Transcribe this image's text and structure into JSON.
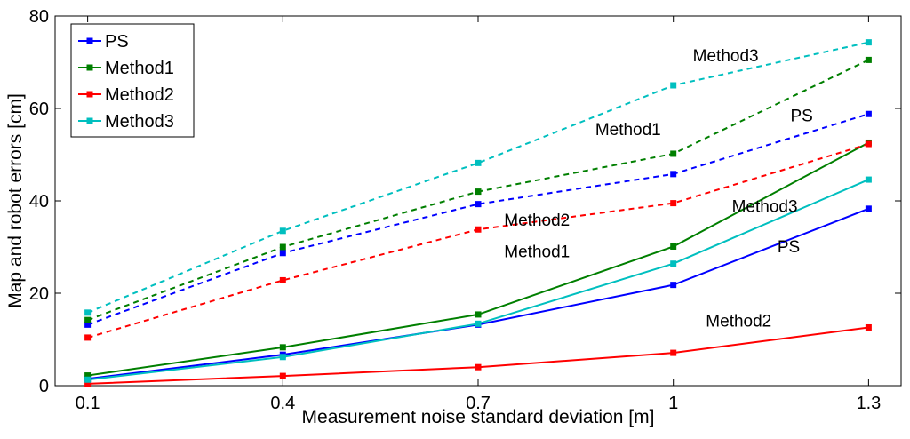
{
  "chart_data": {
    "type": "line",
    "xlabel": "Measurement noise standard deviation [m]",
    "ylabel": "Map and robot errors [cm]",
    "x": [
      0.1,
      0.4,
      0.7,
      1,
      1.3
    ],
    "x_tick_labels": [
      "0.1",
      "0.4",
      "0.7",
      "1",
      "1.3"
    ],
    "xlim": [
      0.05,
      1.35
    ],
    "ylim": [
      0,
      80
    ],
    "y_ticks": [
      0,
      20,
      40,
      60,
      80
    ],
    "y_tick_labels": [
      "0",
      "20",
      "40",
      "60",
      "80"
    ],
    "grid": false,
    "legend_position": "top-left",
    "legend": [
      {
        "name": "PS",
        "color": "#0000ff"
      },
      {
        "name": "Method1",
        "color": "#007f00"
      },
      {
        "name": "Method2",
        "color": "#ff0000"
      },
      {
        "name": "Method3",
        "color": "#00bfbf"
      }
    ],
    "series": [
      {
        "name": "PS",
        "style": "solid",
        "color": "#0000ff",
        "values": [
          1.5,
          6.7,
          13.2,
          21.8,
          38.3
        ]
      },
      {
        "name": "Method1",
        "style": "solid",
        "color": "#007f00",
        "values": [
          2.2,
          8.3,
          15.4,
          30.1,
          52.6
        ]
      },
      {
        "name": "Method2",
        "style": "solid",
        "color": "#ff0000",
        "values": [
          0.4,
          2.1,
          4.0,
          7.1,
          12.6
        ]
      },
      {
        "name": "Method3",
        "style": "solid",
        "color": "#00bfbf",
        "values": [
          1.3,
          6.2,
          13.4,
          26.4,
          44.6
        ]
      },
      {
        "name": "PS",
        "style": "dashed",
        "color": "#0000ff",
        "values": [
          13.2,
          28.7,
          39.3,
          45.8,
          58.8
        ]
      },
      {
        "name": "Method1",
        "style": "dashed",
        "color": "#007f00",
        "values": [
          14.2,
          30.0,
          42.0,
          50.2,
          70.5
        ]
      },
      {
        "name": "Method2",
        "style": "dashed",
        "color": "#ff0000",
        "values": [
          10.4,
          22.8,
          33.8,
          39.5,
          52.3
        ]
      },
      {
        "name": "Method3",
        "style": "dashed",
        "color": "#00bfbf",
        "values": [
          15.8,
          33.5,
          48.2,
          65.0,
          74.3
        ]
      }
    ],
    "annotations": [
      {
        "text": "Method3",
        "x": 1.03,
        "y": 70.2
      },
      {
        "text": "Method1",
        "x": 0.88,
        "y": 54.2
      },
      {
        "text": "PS",
        "x": 1.18,
        "y": 57.2
      },
      {
        "text": "Method2",
        "x": 0.74,
        "y": 34.6
      },
      {
        "text": "Method3",
        "x": 1.09,
        "y": 37.6
      },
      {
        "text": "Method1",
        "x": 0.74,
        "y": 27.8
      },
      {
        "text": "PS",
        "x": 1.16,
        "y": 28.8
      },
      {
        "text": "Method2",
        "x": 1.05,
        "y": 12.8
      }
    ]
  }
}
